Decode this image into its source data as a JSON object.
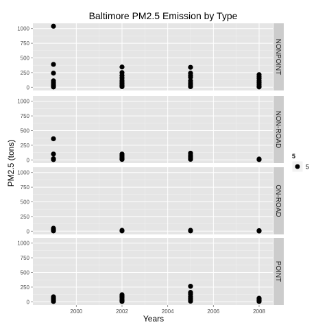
{
  "chart_data": {
    "type": "scatter",
    "title": "Baltimore PM2.5 Emission by Type",
    "xlabel": "Years",
    "ylabel": "PM2.5 (tons)",
    "xlim": [
      1998.1,
      2008.6
    ],
    "ylim": [
      -55,
      1090
    ],
    "x_ticks": [
      2000,
      2002,
      2004,
      2006,
      2008
    ],
    "y_ticks": [
      0,
      250,
      500,
      750,
      1000
    ],
    "grid": true,
    "legend": {
      "title": "5",
      "label": "5",
      "placement": "right"
    },
    "colors": {
      "panel": "#e5e5e5",
      "strip": "#cccccc",
      "grid_major": "#ffffff",
      "grid_minor": "#f2f2f2",
      "point": "#000000"
    },
    "facets": [
      {
        "name": "NONPOINT",
        "points": [
          {
            "x": 1999,
            "y": 1040
          },
          {
            "x": 1999,
            "y": 390
          },
          {
            "x": 1999,
            "y": 240
          },
          {
            "x": 1999,
            "y": 110
          },
          {
            "x": 1999,
            "y": 80
          },
          {
            "x": 1999,
            "y": 55
          },
          {
            "x": 1999,
            "y": 35
          },
          {
            "x": 1999,
            "y": 20
          },
          {
            "x": 1999,
            "y": 5
          },
          {
            "x": 2002,
            "y": 345
          },
          {
            "x": 2002,
            "y": 250
          },
          {
            "x": 2002,
            "y": 200
          },
          {
            "x": 2002,
            "y": 160
          },
          {
            "x": 2002,
            "y": 120
          },
          {
            "x": 2002,
            "y": 90
          },
          {
            "x": 2002,
            "y": 60
          },
          {
            "x": 2002,
            "y": 30
          },
          {
            "x": 2002,
            "y": 10
          },
          {
            "x": 2005,
            "y": 340
          },
          {
            "x": 2005,
            "y": 240
          },
          {
            "x": 2005,
            "y": 200
          },
          {
            "x": 2005,
            "y": 170
          },
          {
            "x": 2005,
            "y": 110
          },
          {
            "x": 2005,
            "y": 70
          },
          {
            "x": 2005,
            "y": 40
          },
          {
            "x": 2005,
            "y": 10
          },
          {
            "x": 2008,
            "y": 215
          },
          {
            "x": 2008,
            "y": 180
          },
          {
            "x": 2008,
            "y": 150
          },
          {
            "x": 2008,
            "y": 110
          },
          {
            "x": 2008,
            "y": 80
          },
          {
            "x": 2008,
            "y": 50
          },
          {
            "x": 2008,
            "y": 20
          },
          {
            "x": 2008,
            "y": 5
          }
        ]
      },
      {
        "name": "NON-ROAD",
        "points": [
          {
            "x": 1999,
            "y": 360
          },
          {
            "x": 1999,
            "y": 100
          },
          {
            "x": 1999,
            "y": 20
          },
          {
            "x": 1999,
            "y": 5
          },
          {
            "x": 2002,
            "y": 100
          },
          {
            "x": 2002,
            "y": 75
          },
          {
            "x": 2002,
            "y": 50
          },
          {
            "x": 2002,
            "y": 25
          },
          {
            "x": 2002,
            "y": 8
          },
          {
            "x": 2005,
            "y": 115
          },
          {
            "x": 2005,
            "y": 80
          },
          {
            "x": 2005,
            "y": 55
          },
          {
            "x": 2005,
            "y": 30
          },
          {
            "x": 2005,
            "y": 10
          },
          {
            "x": 2008,
            "y": 15
          },
          {
            "x": 2008,
            "y": 5
          }
        ]
      },
      {
        "name": "ON-ROAD",
        "points": [
          {
            "x": 1999,
            "y": 50
          },
          {
            "x": 1999,
            "y": 30
          },
          {
            "x": 1999,
            "y": 15
          },
          {
            "x": 1999,
            "y": 5
          },
          {
            "x": 2002,
            "y": 15
          },
          {
            "x": 2002,
            "y": 5
          },
          {
            "x": 2005,
            "y": 15
          },
          {
            "x": 2005,
            "y": 5
          },
          {
            "x": 2008,
            "y": 10
          },
          {
            "x": 2008,
            "y": 3
          }
        ]
      },
      {
        "name": "POINT",
        "points": [
          {
            "x": 1999,
            "y": 85
          },
          {
            "x": 1999,
            "y": 60
          },
          {
            "x": 1999,
            "y": 35
          },
          {
            "x": 1999,
            "y": 15
          },
          {
            "x": 1999,
            "y": 5
          },
          {
            "x": 2002,
            "y": 120
          },
          {
            "x": 2002,
            "y": 95
          },
          {
            "x": 2002,
            "y": 70
          },
          {
            "x": 2002,
            "y": 45
          },
          {
            "x": 2002,
            "y": 20
          },
          {
            "x": 2002,
            "y": 5
          },
          {
            "x": 2005,
            "y": 265
          },
          {
            "x": 2005,
            "y": 160
          },
          {
            "x": 2005,
            "y": 130
          },
          {
            "x": 2005,
            "y": 90
          },
          {
            "x": 2005,
            "y": 60
          },
          {
            "x": 2005,
            "y": 30
          },
          {
            "x": 2005,
            "y": 10
          },
          {
            "x": 2008,
            "y": 60
          },
          {
            "x": 2008,
            "y": 40
          },
          {
            "x": 2008,
            "y": 20
          },
          {
            "x": 2008,
            "y": 5
          }
        ]
      }
    ]
  }
}
